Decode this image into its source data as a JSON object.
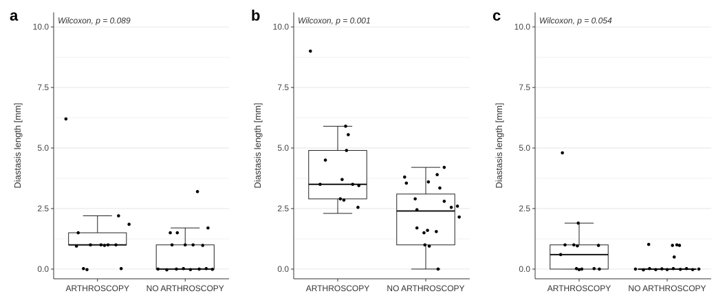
{
  "chart_data": [
    {
      "type": "box",
      "panel_label": "a",
      "annotation": "Wilcoxon, p = 0.089",
      "ylabel": "Diastasis length [mm]",
      "ylim": [
        -0.4,
        10.6
      ],
      "yticks": [
        "0.0",
        "2.5",
        "5.0",
        "7.5",
        "10.0"
      ],
      "grid": true,
      "categories": [
        "ARTHROSCOPY",
        "NO ARTHROSCOPY"
      ],
      "boxes": [
        {
          "category": "ARTHROSCOPY",
          "min": 1.0,
          "q1": 1.0,
          "median": 1.0,
          "q3": 1.5,
          "max": 2.2
        },
        {
          "category": "NO ARTHROSCOPY",
          "min": 0.0,
          "q1": 0.0,
          "median": 0.0,
          "q3": 1.0,
          "max": 1.7
        }
      ],
      "points": [
        {
          "category": "ARTHROSCOPY",
          "jitter": -0.36,
          "y": 6.2
        },
        {
          "category": "ARTHROSCOPY",
          "jitter": 0.24,
          "y": 2.2
        },
        {
          "category": "ARTHROSCOPY",
          "jitter": 0.36,
          "y": 1.85
        },
        {
          "category": "ARTHROSCOPY",
          "jitter": -0.22,
          "y": 1.5
        },
        {
          "category": "ARTHROSCOPY",
          "jitter": -0.08,
          "y": 1.0
        },
        {
          "category": "ARTHROSCOPY",
          "jitter": 0.04,
          "y": 1.0
        },
        {
          "category": "ARTHROSCOPY",
          "jitter": 0.12,
          "y": 1.0
        },
        {
          "category": "ARTHROSCOPY",
          "jitter": 0.21,
          "y": 1.0
        },
        {
          "category": "ARTHROSCOPY",
          "jitter": -0.24,
          "y": 0.95
        },
        {
          "category": "ARTHROSCOPY",
          "jitter": 0.08,
          "y": 0.98
        },
        {
          "category": "ARTHROSCOPY",
          "jitter": -0.16,
          "y": 0.02
        },
        {
          "category": "ARTHROSCOPY",
          "jitter": -0.12,
          "y": -0.02
        },
        {
          "category": "ARTHROSCOPY",
          "jitter": 0.27,
          "y": 0.02
        },
        {
          "category": "NO ARTHROSCOPY",
          "jitter": 0.14,
          "y": 3.2
        },
        {
          "category": "NO ARTHROSCOPY",
          "jitter": 0.26,
          "y": 1.7
        },
        {
          "category": "NO ARTHROSCOPY",
          "jitter": -0.17,
          "y": 1.5
        },
        {
          "category": "NO ARTHROSCOPY",
          "jitter": -0.09,
          "y": 1.5
        },
        {
          "category": "NO ARTHROSCOPY",
          "jitter": -0.15,
          "y": 1.0
        },
        {
          "category": "NO ARTHROSCOPY",
          "jitter": 0.0,
          "y": 1.0
        },
        {
          "category": "NO ARTHROSCOPY",
          "jitter": 0.09,
          "y": 1.0
        },
        {
          "category": "NO ARTHROSCOPY",
          "jitter": 0.2,
          "y": 0.98
        },
        {
          "category": "NO ARTHROSCOPY",
          "jitter": -0.31,
          "y": 0.0
        },
        {
          "category": "NO ARTHROSCOPY",
          "jitter": -0.21,
          "y": -0.03
        },
        {
          "category": "NO ARTHROSCOPY",
          "jitter": -0.1,
          "y": 0.0
        },
        {
          "category": "NO ARTHROSCOPY",
          "jitter": -0.02,
          "y": 0.02
        },
        {
          "category": "NO ARTHROSCOPY",
          "jitter": 0.06,
          "y": -0.02
        },
        {
          "category": "NO ARTHROSCOPY",
          "jitter": 0.16,
          "y": 0.0
        },
        {
          "category": "NO ARTHROSCOPY",
          "jitter": 0.24,
          "y": 0.02
        },
        {
          "category": "NO ARTHROSCOPY",
          "jitter": 0.31,
          "y": -0.01
        }
      ]
    },
    {
      "type": "box",
      "panel_label": "b",
      "annotation": "Wilcoxon, p = 0.001",
      "ylabel": "Diastasis length [mm]",
      "ylim": [
        -0.4,
        10.6
      ],
      "yticks": [
        "0.0",
        "2.5",
        "5.0",
        "7.5",
        "10.0"
      ],
      "grid": true,
      "categories": [
        "ARTHROSCOPY",
        "NO ARTHROSCOPY"
      ],
      "boxes": [
        {
          "category": "ARTHROSCOPY",
          "min": 2.3,
          "q1": 2.9,
          "median": 3.5,
          "q3": 4.9,
          "max": 5.9
        },
        {
          "category": "NO ARTHROSCOPY",
          "min": 0.0,
          "q1": 1.0,
          "median": 2.4,
          "q3": 3.1,
          "max": 4.2
        }
      ],
      "points": [
        {
          "category": "ARTHROSCOPY",
          "jitter": -0.31,
          "y": 9.0
        },
        {
          "category": "ARTHROSCOPY",
          "jitter": 0.09,
          "y": 5.9
        },
        {
          "category": "ARTHROSCOPY",
          "jitter": 0.12,
          "y": 5.55
        },
        {
          "category": "ARTHROSCOPY",
          "jitter": 0.1,
          "y": 4.9
        },
        {
          "category": "ARTHROSCOPY",
          "jitter": -0.14,
          "y": 4.5
        },
        {
          "category": "ARTHROSCOPY",
          "jitter": 0.05,
          "y": 3.7
        },
        {
          "category": "ARTHROSCOPY",
          "jitter": -0.2,
          "y": 3.5
        },
        {
          "category": "ARTHROSCOPY",
          "jitter": 0.17,
          "y": 3.5
        },
        {
          "category": "ARTHROSCOPY",
          "jitter": 0.24,
          "y": 3.45
        },
        {
          "category": "ARTHROSCOPY",
          "jitter": 0.03,
          "y": 2.9
        },
        {
          "category": "ARTHROSCOPY",
          "jitter": 0.07,
          "y": 2.85
        },
        {
          "category": "ARTHROSCOPY",
          "jitter": 0.23,
          "y": 2.55
        },
        {
          "category": "NO ARTHROSCOPY",
          "jitter": 0.21,
          "y": 4.2
        },
        {
          "category": "NO ARTHROSCOPY",
          "jitter": 0.13,
          "y": 3.9
        },
        {
          "category": "NO ARTHROSCOPY",
          "jitter": -0.24,
          "y": 3.8
        },
        {
          "category": "NO ARTHROSCOPY",
          "jitter": -0.22,
          "y": 3.55
        },
        {
          "category": "NO ARTHROSCOPY",
          "jitter": 0.03,
          "y": 3.6
        },
        {
          "category": "NO ARTHROSCOPY",
          "jitter": 0.16,
          "y": 3.35
        },
        {
          "category": "NO ARTHROSCOPY",
          "jitter": -0.12,
          "y": 2.9
        },
        {
          "category": "NO ARTHROSCOPY",
          "jitter": 0.21,
          "y": 2.8
        },
        {
          "category": "NO ARTHROSCOPY",
          "jitter": 0.36,
          "y": 2.6
        },
        {
          "category": "NO ARTHROSCOPY",
          "jitter": 0.29,
          "y": 2.55
        },
        {
          "category": "NO ARTHROSCOPY",
          "jitter": -0.1,
          "y": 2.45
        },
        {
          "category": "NO ARTHROSCOPY",
          "jitter": 0.38,
          "y": 2.15
        },
        {
          "category": "NO ARTHROSCOPY",
          "jitter": -0.1,
          "y": 1.7
        },
        {
          "category": "NO ARTHROSCOPY",
          "jitter": 0.02,
          "y": 1.6
        },
        {
          "category": "NO ARTHROSCOPY",
          "jitter": -0.02,
          "y": 1.5
        },
        {
          "category": "NO ARTHROSCOPY",
          "jitter": 0.12,
          "y": 1.55
        },
        {
          "category": "NO ARTHROSCOPY",
          "jitter": -0.01,
          "y": 1.0
        },
        {
          "category": "NO ARTHROSCOPY",
          "jitter": 0.04,
          "y": 0.95
        },
        {
          "category": "NO ARTHROSCOPY",
          "jitter": 0.14,
          "y": 0.0
        }
      ]
    },
    {
      "type": "box",
      "panel_label": "c",
      "annotation": "Wilcoxon, p = 0.054",
      "ylabel": "Diastasis length [mm]",
      "ylim": [
        -0.4,
        10.6
      ],
      "yticks": [
        "0.0",
        "2.5",
        "5.0",
        "7.5",
        "10.0"
      ],
      "grid": true,
      "categories": [
        "ARTHROSCOPY",
        "NO ARTHROSCOPY"
      ],
      "boxes": [
        {
          "category": "ARTHROSCOPY",
          "min": 0.0,
          "q1": 0.0,
          "median": 0.6,
          "q3": 1.0,
          "max": 1.9
        },
        {
          "category": "NO ARTHROSCOPY",
          "min": 0.0,
          "q1": 0.0,
          "median": 0.0,
          "q3": 0.0,
          "max": 0.0
        }
      ],
      "points": [
        {
          "category": "ARTHROSCOPY",
          "jitter": -0.19,
          "y": 4.8
        },
        {
          "category": "ARTHROSCOPY",
          "jitter": -0.01,
          "y": 1.9
        },
        {
          "category": "ARTHROSCOPY",
          "jitter": -0.16,
          "y": 1.0
        },
        {
          "category": "ARTHROSCOPY",
          "jitter": -0.06,
          "y": 1.0
        },
        {
          "category": "ARTHROSCOPY",
          "jitter": -0.02,
          "y": 0.96
        },
        {
          "category": "ARTHROSCOPY",
          "jitter": 0.22,
          "y": 0.98
        },
        {
          "category": "ARTHROSCOPY",
          "jitter": -0.21,
          "y": 0.6
        },
        {
          "category": "ARTHROSCOPY",
          "jitter": -0.03,
          "y": 0.02
        },
        {
          "category": "ARTHROSCOPY",
          "jitter": 0.0,
          "y": -0.02
        },
        {
          "category": "ARTHROSCOPY",
          "jitter": 0.03,
          "y": 0.0
        },
        {
          "category": "ARTHROSCOPY",
          "jitter": 0.17,
          "y": 0.02
        },
        {
          "category": "ARTHROSCOPY",
          "jitter": 0.23,
          "y": 0.0
        },
        {
          "category": "NO ARTHROSCOPY",
          "jitter": -0.21,
          "y": 1.02
        },
        {
          "category": "NO ARTHROSCOPY",
          "jitter": 0.06,
          "y": 0.98
        },
        {
          "category": "NO ARTHROSCOPY",
          "jitter": 0.11,
          "y": 1.0
        },
        {
          "category": "NO ARTHROSCOPY",
          "jitter": 0.14,
          "y": 0.98
        },
        {
          "category": "NO ARTHROSCOPY",
          "jitter": 0.08,
          "y": 0.5
        },
        {
          "category": "NO ARTHROSCOPY",
          "jitter": -0.36,
          "y": 0.0
        },
        {
          "category": "NO ARTHROSCOPY",
          "jitter": -0.27,
          "y": -0.03
        },
        {
          "category": "NO ARTHROSCOPY",
          "jitter": -0.2,
          "y": 0.02
        },
        {
          "category": "NO ARTHROSCOPY",
          "jitter": -0.13,
          "y": -0.02
        },
        {
          "category": "NO ARTHROSCOPY",
          "jitter": -0.06,
          "y": 0.01
        },
        {
          "category": "NO ARTHROSCOPY",
          "jitter": 0.0,
          "y": -0.02
        },
        {
          "category": "NO ARTHROSCOPY",
          "jitter": 0.07,
          "y": 0.02
        },
        {
          "category": "NO ARTHROSCOPY",
          "jitter": 0.15,
          "y": -0.01
        },
        {
          "category": "NO ARTHROSCOPY",
          "jitter": 0.22,
          "y": 0.02
        },
        {
          "category": "NO ARTHROSCOPY",
          "jitter": 0.29,
          "y": -0.02
        },
        {
          "category": "NO ARTHROSCOPY",
          "jitter": 0.36,
          "y": 0.0
        }
      ]
    }
  ]
}
